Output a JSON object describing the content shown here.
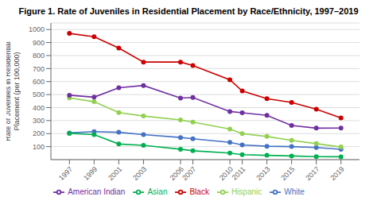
{
  "chart_data": {
    "type": "line",
    "title": "Figure 1. Rate of Juveniles in Residential Placement by Race/Ethnicity, 1997–2019",
    "ylabel": "Rate of Juveniles in Residential\nPlacement (per 100,000)",
    "x": [
      1997,
      1999,
      2001,
      2003,
      2006,
      2007,
      2010,
      2011,
      2013,
      2015,
      2017,
      2019
    ],
    "series": [
      {
        "name": "White",
        "color": "#4472C4",
        "marker": "circle",
        "values": [
          205,
          215,
          210,
          192,
          170,
          160,
          133,
          113,
          103,
          100,
          93,
          79
        ]
      },
      {
        "name": "Black",
        "color": "#CC0000",
        "marker": "circle",
        "values": [
          970,
          945,
          858,
          750,
          750,
          723,
          614,
          528,
          468,
          440,
          388,
          321
        ]
      },
      {
        "name": "Hispanic",
        "color": "#92D050",
        "marker": "circle",
        "values": [
          475,
          445,
          362,
          335,
          305,
          288,
          235,
          200,
          178,
          148,
          123,
          97
        ]
      },
      {
        "name": "American Indian",
        "color": "#7030A0",
        "marker": "circle",
        "values": [
          495,
          480,
          552,
          570,
          473,
          478,
          370,
          360,
          340,
          262,
          242,
          243
        ]
      },
      {
        "name": "Asian",
        "color": "#00B050",
        "marker": "circle",
        "values": [
          202,
          192,
          120,
          110,
          80,
          68,
          50,
          38,
          33,
          28,
          23,
          22
        ]
      }
    ],
    "xlim": [
      1995.5,
      2020.5
    ],
    "xticks": [
      1997,
      1999,
      2001,
      2003,
      2006,
      2007,
      2010,
      2011,
      2013,
      2015,
      2017,
      2019
    ],
    "ylim": [
      0,
      1050
    ],
    "yticks": [
      100,
      200,
      300,
      400,
      500,
      600,
      700,
      800,
      900,
      1000
    ],
    "grid": true,
    "legend": "bottom"
  }
}
